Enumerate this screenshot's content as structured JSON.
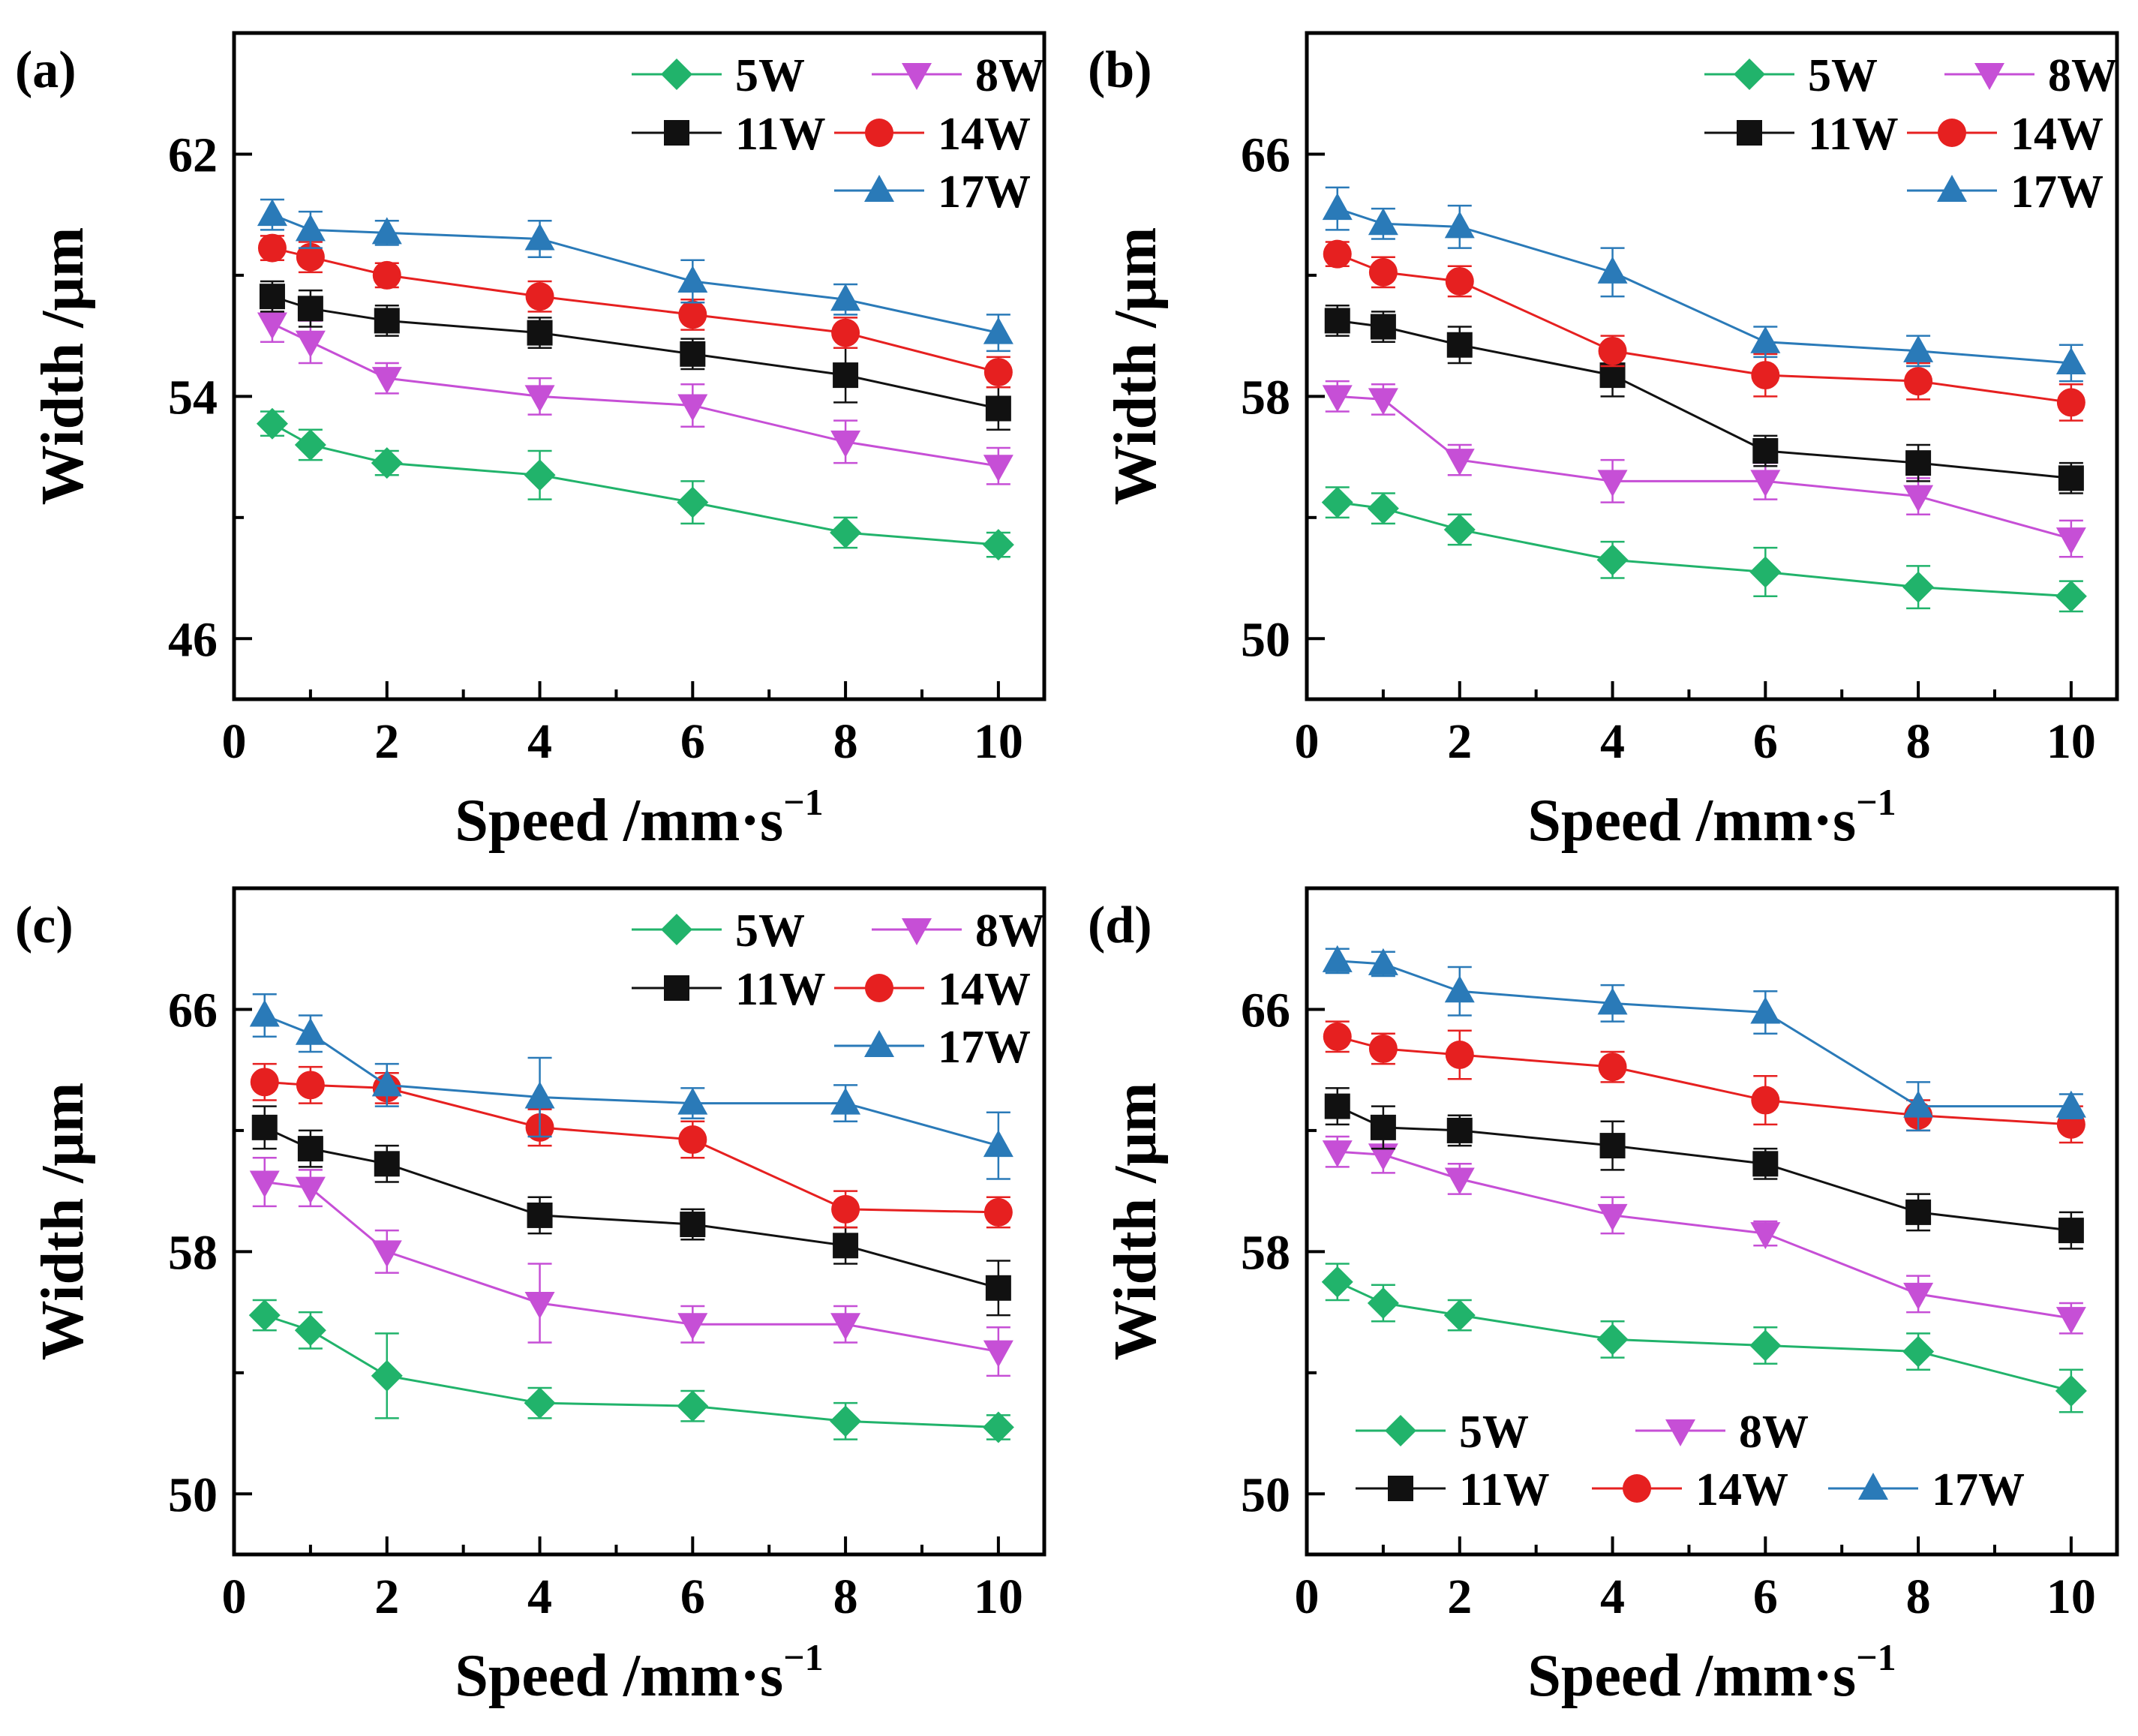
{
  "figure": {
    "panels": [
      "(a)",
      "(b)",
      "(c)",
      "(d)"
    ]
  },
  "legend_entries": [
    "5W",
    "8W",
    "11W",
    "14W",
    "17W"
  ],
  "series_colors": {
    "5W": "#21b36b",
    "8W": "#c64fd6",
    "11W": "#111111",
    "14W": "#e62020",
    "17W": "#2a7ab8"
  },
  "chart_data": [
    {
      "type": "line",
      "panel_label": "(a)",
      "xlabel": "Speed /mm·s",
      "xlabel_sup": "−1",
      "ylabel": "Width /μm",
      "xlim": [
        0,
        10.6
      ],
      "ylim": [
        44,
        66
      ],
      "xticks": [
        0,
        2,
        4,
        6,
        8,
        10
      ],
      "yticks": [
        46,
        54,
        62
      ],
      "legend_position": "top-right",
      "x": [
        0.5,
        1,
        2,
        4,
        6,
        8,
        10
      ],
      "series": [
        {
          "name": "5W",
          "marker": "diamond",
          "values": [
            53.1,
            52.4,
            51.8,
            51.4,
            50.5,
            49.5,
            49.1
          ],
          "errors": [
            0.4,
            0.5,
            0.4,
            0.8,
            0.7,
            0.5,
            0.4
          ]
        },
        {
          "name": "8W",
          "marker": "triangle-down",
          "values": [
            56.4,
            55.8,
            54.6,
            54.0,
            53.7,
            52.5,
            51.7
          ],
          "errors": [
            0.6,
            0.7,
            0.5,
            0.6,
            0.7,
            0.7,
            0.6
          ]
        },
        {
          "name": "11W",
          "marker": "square",
          "values": [
            57.3,
            56.9,
            56.5,
            56.1,
            55.4,
            54.7,
            53.6
          ],
          "errors": [
            0.5,
            0.6,
            0.5,
            0.5,
            0.5,
            0.9,
            0.7
          ]
        },
        {
          "name": "14W",
          "marker": "circle",
          "values": [
            58.9,
            58.6,
            58.0,
            57.3,
            56.7,
            56.1,
            54.8
          ],
          "errors": [
            0.4,
            0.5,
            0.4,
            0.5,
            0.5,
            0.5,
            0.5
          ]
        },
        {
          "name": "17W",
          "marker": "triangle-up",
          "values": [
            60.0,
            59.5,
            59.4,
            59.2,
            57.8,
            57.2,
            56.1
          ],
          "errors": [
            0.5,
            0.6,
            0.4,
            0.6,
            0.7,
            0.5,
            0.6
          ]
        }
      ]
    },
    {
      "type": "line",
      "panel_label": "(b)",
      "xlabel": "Speed /mm·s",
      "xlabel_sup": "−1",
      "ylabel": "Width /μm",
      "xlim": [
        0,
        10.6
      ],
      "ylim": [
        48,
        70
      ],
      "xticks": [
        0,
        2,
        4,
        6,
        8,
        10
      ],
      "yticks": [
        50,
        58,
        66
      ],
      "legend_position": "top-right",
      "x": [
        0.4,
        1,
        2,
        4,
        6,
        8,
        10
      ],
      "series": [
        {
          "name": "5W",
          "marker": "diamond",
          "values": [
            54.5,
            54.3,
            53.6,
            52.6,
            52.2,
            51.7,
            51.4
          ],
          "errors": [
            0.5,
            0.5,
            0.5,
            0.6,
            0.8,
            0.7,
            0.5
          ]
        },
        {
          "name": "8W",
          "marker": "triangle-down",
          "values": [
            58.0,
            57.9,
            55.9,
            55.2,
            55.2,
            54.7,
            53.3
          ],
          "errors": [
            0.5,
            0.5,
            0.5,
            0.7,
            0.6,
            0.6,
            0.6
          ]
        },
        {
          "name": "11W",
          "marker": "square",
          "values": [
            60.5,
            60.3,
            59.7,
            58.7,
            56.2,
            55.8,
            55.3
          ],
          "errors": [
            0.5,
            0.5,
            0.6,
            0.7,
            0.5,
            0.6,
            0.5
          ]
        },
        {
          "name": "14W",
          "marker": "circle",
          "values": [
            62.7,
            62.1,
            61.8,
            59.5,
            58.7,
            58.5,
            57.8
          ],
          "errors": [
            0.4,
            0.5,
            0.5,
            0.5,
            0.7,
            0.6,
            0.6
          ]
        },
        {
          "name": "17W",
          "marker": "triangle-up",
          "values": [
            64.2,
            63.7,
            63.6,
            62.1,
            59.8,
            59.5,
            59.1
          ],
          "errors": [
            0.7,
            0.5,
            0.7,
            0.8,
            0.5,
            0.5,
            0.6
          ]
        }
      ]
    },
    {
      "type": "line",
      "panel_label": "(c)",
      "xlabel": "Speed /mm·s",
      "xlabel_sup": "−1",
      "ylabel": "Width /μm",
      "xlim": [
        0,
        10.6
      ],
      "ylim": [
        48,
        70
      ],
      "xticks": [
        0,
        2,
        4,
        6,
        8,
        10
      ],
      "yticks": [
        50,
        58,
        66
      ],
      "legend_position": "top-right",
      "x": [
        0.4,
        1,
        2,
        4,
        6,
        8,
        10
      ],
      "series": [
        {
          "name": "5W",
          "marker": "diamond",
          "values": [
            55.9,
            55.4,
            53.9,
            53.0,
            52.9,
            52.4,
            52.2
          ],
          "errors": [
            0.5,
            0.6,
            1.4,
            0.5,
            0.5,
            0.6,
            0.4
          ]
        },
        {
          "name": "8W",
          "marker": "triangle-down",
          "values": [
            60.3,
            60.1,
            58.0,
            56.3,
            55.6,
            55.6,
            54.7
          ],
          "errors": [
            0.8,
            0.6,
            0.7,
            1.3,
            0.6,
            0.6,
            0.8
          ]
        },
        {
          "name": "11W",
          "marker": "square",
          "values": [
            62.1,
            61.4,
            60.9,
            59.2,
            58.9,
            58.2,
            56.8
          ],
          "errors": [
            0.7,
            0.6,
            0.6,
            0.6,
            0.5,
            0.6,
            0.9
          ]
        },
        {
          "name": "14W",
          "marker": "circle",
          "values": [
            63.6,
            63.5,
            63.4,
            62.1,
            61.7,
            59.4,
            59.3
          ],
          "errors": [
            0.6,
            0.6,
            0.5,
            0.6,
            0.6,
            0.6,
            0.5
          ]
        },
        {
          "name": "17W",
          "marker": "triangle-up",
          "values": [
            65.8,
            65.2,
            63.5,
            63.1,
            62.9,
            62.9,
            61.5
          ],
          "errors": [
            0.7,
            0.6,
            0.7,
            1.3,
            0.5,
            0.6,
            1.1
          ]
        }
      ]
    },
    {
      "type": "line",
      "panel_label": "(d)",
      "xlabel": "Speed /mm·s",
      "xlabel_sup": "−1",
      "ylabel": "Width /μm",
      "xlim": [
        0,
        10.6
      ],
      "ylim": [
        48,
        70
      ],
      "xticks": [
        0,
        2,
        4,
        6,
        8,
        10
      ],
      "yticks": [
        50,
        58,
        66
      ],
      "legend_position": "bottom-left",
      "x": [
        0.4,
        1,
        2,
        4,
        6,
        8,
        10
      ],
      "series": [
        {
          "name": "5W",
          "marker": "diamond",
          "values": [
            57.0,
            56.3,
            55.9,
            55.1,
            54.9,
            54.7,
            53.4
          ],
          "errors": [
            0.6,
            0.6,
            0.5,
            0.6,
            0.6,
            0.6,
            0.7
          ]
        },
        {
          "name": "8W",
          "marker": "triangle-down",
          "values": [
            61.3,
            61.2,
            60.4,
            59.2,
            58.6,
            56.6,
            55.8
          ],
          "errors": [
            0.5,
            0.6,
            0.5,
            0.6,
            0.4,
            0.6,
            0.5
          ]
        },
        {
          "name": "11W",
          "marker": "square",
          "values": [
            62.8,
            62.1,
            62.0,
            61.5,
            60.9,
            59.3,
            58.7
          ],
          "errors": [
            0.6,
            0.7,
            0.5,
            0.8,
            0.5,
            0.6,
            0.6
          ]
        },
        {
          "name": "14W",
          "marker": "circle",
          "values": [
            65.1,
            64.7,
            64.5,
            64.1,
            63.0,
            62.5,
            62.2
          ],
          "errors": [
            0.5,
            0.5,
            0.8,
            0.5,
            0.8,
            0.5,
            0.6
          ]
        },
        {
          "name": "17W",
          "marker": "triangle-up",
          "values": [
            67.6,
            67.5,
            66.6,
            66.2,
            65.9,
            62.8,
            62.8
          ],
          "errors": [
            0.4,
            0.4,
            0.8,
            0.6,
            0.7,
            0.8,
            0.4
          ]
        }
      ]
    }
  ]
}
